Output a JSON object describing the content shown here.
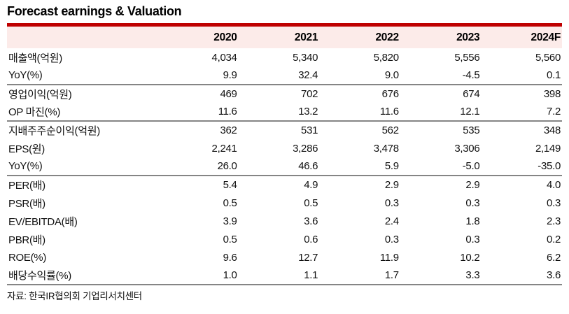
{
  "page_title": "Forecast earnings & Valuation",
  "colors": {
    "accent_red": "#bf0000",
    "header_bg": "#fcebe9",
    "separator_gray": "#858585",
    "text": "#111111"
  },
  "table": {
    "columns": [
      "",
      "2020",
      "2021",
      "2022",
      "2023",
      "2024F"
    ],
    "rows": [
      {
        "label": "매출액(억원)",
        "values": [
          "4,034",
          "5,340",
          "5,820",
          "5,556",
          "5,560"
        ],
        "group_end": false
      },
      {
        "label": "YoY(%)",
        "values": [
          "9.9",
          "32.4",
          "9.0",
          "-4.5",
          "0.1"
        ],
        "group_end": true
      },
      {
        "label": "영업이익(억원)",
        "values": [
          "469",
          "702",
          "676",
          "674",
          "398"
        ],
        "group_end": false
      },
      {
        "label": "OP 마진(%)",
        "values": [
          "11.6",
          "13.2",
          "11.6",
          "12.1",
          "7.2"
        ],
        "group_end": true
      },
      {
        "label": "지배주주순이익(억원)",
        "values": [
          "362",
          "531",
          "562",
          "535",
          "348"
        ],
        "group_end": false
      },
      {
        "label": "EPS(원)",
        "values": [
          "2,241",
          "3,286",
          "3,478",
          "3,306",
          "2,149"
        ],
        "group_end": false
      },
      {
        "label": "YoY(%)",
        "values": [
          "26.0",
          "46.6",
          "5.9",
          "-5.0",
          "-35.0"
        ],
        "group_end": true
      },
      {
        "label": "PER(배)",
        "values": [
          "5.4",
          "4.9",
          "2.9",
          "2.9",
          "4.0"
        ],
        "group_end": false
      },
      {
        "label": "PSR(배)",
        "values": [
          "0.5",
          "0.5",
          "0.3",
          "0.3",
          "0.3"
        ],
        "group_end": false
      },
      {
        "label": "EV/EBITDA(배)",
        "values": [
          "3.9",
          "3.6",
          "2.4",
          "1.8",
          "2.3"
        ],
        "group_end": false
      },
      {
        "label": "PBR(배)",
        "values": [
          "0.5",
          "0.6",
          "0.3",
          "0.3",
          "0.2"
        ],
        "group_end": false
      },
      {
        "label": "ROE(%)",
        "values": [
          "9.6",
          "12.7",
          "11.9",
          "10.2",
          "6.2"
        ],
        "group_end": false
      },
      {
        "label": "배당수익률(%)",
        "values": [
          "1.0",
          "1.1",
          "1.7",
          "3.3",
          "3.6"
        ],
        "group_end": true
      }
    ]
  },
  "footer": {
    "source": "자료: 한국IR협의회 기업리서치센터"
  }
}
